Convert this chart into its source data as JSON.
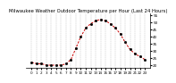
{
  "title": "Milwaukee Weather Outdoor Temperature per Hour (Last 24 Hours)",
  "hours": [
    0,
    1,
    2,
    3,
    4,
    5,
    6,
    7,
    8,
    9,
    10,
    11,
    12,
    13,
    14,
    15,
    16,
    17,
    18,
    19,
    20,
    21,
    22,
    23
  ],
  "temps": [
    22,
    21,
    21,
    20,
    20,
    20,
    20,
    21,
    24,
    32,
    40,
    46,
    49,
    51,
    52,
    51,
    49,
    46,
    42,
    36,
    31,
    28,
    26,
    24
  ],
  "line_color": "#cc0000",
  "marker_color": "#000000",
  "bg_color": "#ffffff",
  "grid_color": "#888888",
  "title_color": "#000000",
  "title_fontsize": 3.8,
  "tick_fontsize": 3.0,
  "ylim": [
    18,
    56
  ],
  "ytick_values": [
    20,
    25,
    30,
    35,
    40,
    45,
    50,
    55
  ],
  "ytick_labels": [
    "20",
    "25",
    "30",
    "35",
    "40",
    "45",
    "50",
    "55"
  ]
}
